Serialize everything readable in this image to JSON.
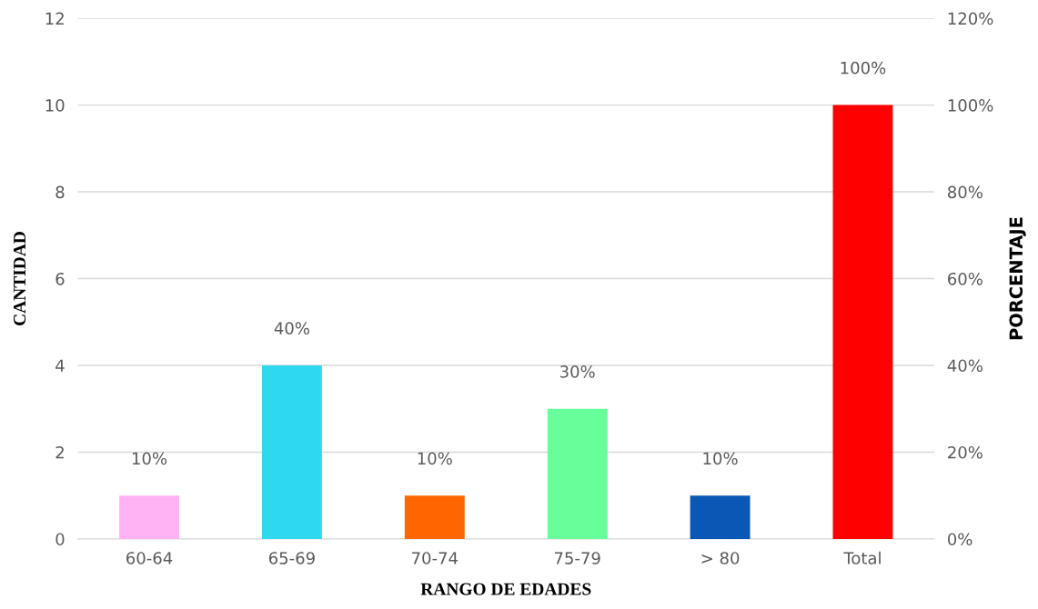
{
  "chart_data": {
    "type": "bar",
    "xlabel": "RANGO DE EDADES",
    "ylabel": "CANTIDAD",
    "y2label": "PORCENTAJE",
    "categories": [
      "60-64",
      "65-69",
      "70-74",
      "75-79",
      "> 80",
      "Total"
    ],
    "series": [
      {
        "axis": "y2",
        "colors": [
          "#ffb3f5",
          "#2ed8ee",
          "#ff6600",
          "#66ff99",
          "#0b57b5",
          "#ff0000"
        ],
        "values": [
          10,
          40,
          10,
          30,
          10,
          100
        ],
        "value_labels": [
          "10%",
          "40%",
          "10%",
          "30%",
          "10%",
          "100%"
        ]
      }
    ],
    "ylim": [
      0,
      12
    ],
    "yticks": [
      0,
      2,
      4,
      6,
      8,
      10,
      12
    ],
    "y2lim": [
      0,
      120
    ],
    "y2ticks": [
      {
        "value": 0,
        "label": "0%"
      },
      {
        "value": 20,
        "label": "20%"
      },
      {
        "value": 40,
        "label": "40%"
      },
      {
        "value": 60,
        "label": "60%"
      },
      {
        "value": 80,
        "label": "80%"
      },
      {
        "value": 100,
        "label": "100%"
      },
      {
        "value": 120,
        "label": "120%"
      }
    ],
    "grid": "y",
    "legend": false
  }
}
